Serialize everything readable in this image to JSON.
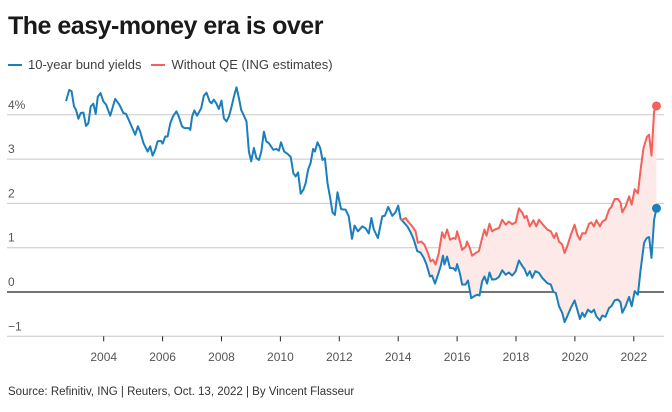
{
  "chart_data": {
    "type": "line",
    "title": "The easy-money era is over",
    "source": "Source: Refinitiv, ING | Reuters, Oct. 13, 2022 | By Vincent Flasseur",
    "xlabel": "",
    "ylabel": "",
    "xlim": [
      2000.75,
      2023.0
    ],
    "ylim": [
      -1,
      4
    ],
    "y_ticks": [
      4,
      3,
      2,
      1,
      0,
      -1
    ],
    "y_tick_labels": [
      "4%",
      "3",
      "2",
      "1",
      "0",
      "−1"
    ],
    "x_ticks": [
      2004,
      2006,
      2008,
      2010,
      2012,
      2014,
      2016,
      2018,
      2020,
      2022
    ],
    "x_tick_labels": [
      "2004",
      "2006",
      "2008",
      "2010",
      "2012",
      "2014",
      "2016",
      "2018",
      "2020",
      "2022"
    ],
    "grid": true,
    "legend_position": "top-left",
    "series": [
      {
        "name": "10-year bund yields",
        "color": "#1a7fba",
        "points": [
          [
            2002.72,
            4.31
          ],
          [
            2002.83,
            4.56
          ],
          [
            2002.91,
            4.53
          ],
          [
            2002.99,
            4.19
          ],
          [
            2003.06,
            4.11
          ],
          [
            2003.14,
            3.91
          ],
          [
            2003.22,
            4.04
          ],
          [
            2003.31,
            4.05
          ],
          [
            2003.4,
            3.75
          ],
          [
            2003.48,
            3.81
          ],
          [
            2003.56,
            4.19
          ],
          [
            2003.65,
            4.25
          ],
          [
            2003.73,
            4.02
          ],
          [
            2003.8,
            4.41
          ],
          [
            2003.89,
            4.49
          ],
          [
            2003.99,
            4.3
          ],
          [
            2004.08,
            4.23
          ],
          [
            2004.22,
            3.98
          ],
          [
            2004.39,
            4.36
          ],
          [
            2004.53,
            4.23
          ],
          [
            2004.67,
            4.04
          ],
          [
            2004.76,
            4.02
          ],
          [
            2004.9,
            3.81
          ],
          [
            2005.07,
            3.55
          ],
          [
            2005.16,
            3.74
          ],
          [
            2005.24,
            3.62
          ],
          [
            2005.35,
            3.36
          ],
          [
            2005.49,
            3.17
          ],
          [
            2005.58,
            3.29
          ],
          [
            2005.66,
            3.08
          ],
          [
            2005.75,
            3.21
          ],
          [
            2005.83,
            3.4
          ],
          [
            2005.94,
            3.41
          ],
          [
            2006.0,
            3.35
          ],
          [
            2006.09,
            3.51
          ],
          [
            2006.17,
            3.51
          ],
          [
            2006.26,
            3.81
          ],
          [
            2006.35,
            3.96
          ],
          [
            2006.47,
            4.08
          ],
          [
            2006.55,
            3.96
          ],
          [
            2006.66,
            3.74
          ],
          [
            2006.74,
            3.7
          ],
          [
            2006.89,
            3.7
          ],
          [
            2006.94,
            3.66
          ],
          [
            2007.0,
            3.96
          ],
          [
            2007.08,
            4.1
          ],
          [
            2007.17,
            3.98
          ],
          [
            2007.31,
            4.15
          ],
          [
            2007.4,
            4.43
          ],
          [
            2007.49,
            4.5
          ],
          [
            2007.6,
            4.3
          ],
          [
            2007.66,
            4.26
          ],
          [
            2007.74,
            4.34
          ],
          [
            2007.83,
            4.25
          ],
          [
            2007.91,
            4.13
          ],
          [
            2008.0,
            4.32
          ],
          [
            2008.08,
            3.92
          ],
          [
            2008.17,
            3.85
          ],
          [
            2008.25,
            3.96
          ],
          [
            2008.33,
            4.15
          ],
          [
            2008.42,
            4.41
          ],
          [
            2008.51,
            4.62
          ],
          [
            2008.59,
            4.38
          ],
          [
            2008.67,
            4.11
          ],
          [
            2008.76,
            3.98
          ],
          [
            2008.85,
            3.85
          ],
          [
            2008.93,
            3.17
          ],
          [
            2009.01,
            2.95
          ],
          [
            2009.1,
            3.25
          ],
          [
            2009.19,
            3.02
          ],
          [
            2009.27,
            2.98
          ],
          [
            2009.35,
            3.17
          ],
          [
            2009.44,
            3.62
          ],
          [
            2009.52,
            3.4
          ],
          [
            2009.61,
            3.36
          ],
          [
            2009.76,
            3.21
          ],
          [
            2009.86,
            3.23
          ],
          [
            2009.95,
            3.19
          ],
          [
            2010.02,
            3.38
          ],
          [
            2010.13,
            3.17
          ],
          [
            2010.24,
            3.12
          ],
          [
            2010.35,
            3.05
          ],
          [
            2010.44,
            2.68
          ],
          [
            2010.52,
            2.61
          ],
          [
            2010.6,
            2.7
          ],
          [
            2010.69,
            2.22
          ],
          [
            2010.78,
            2.31
          ],
          [
            2010.86,
            2.46
          ],
          [
            2010.94,
            2.76
          ],
          [
            2011.03,
            2.92
          ],
          [
            2011.11,
            3.23
          ],
          [
            2011.17,
            3.17
          ],
          [
            2011.26,
            3.38
          ],
          [
            2011.35,
            3.25
          ],
          [
            2011.43,
            2.98
          ],
          [
            2011.51,
            3.02
          ],
          [
            2011.6,
            2.46
          ],
          [
            2011.69,
            2.12
          ],
          [
            2011.77,
            1.8
          ],
          [
            2011.85,
            1.74
          ],
          [
            2011.94,
            2.25
          ],
          [
            2012.06,
            1.87
          ],
          [
            2012.21,
            1.86
          ],
          [
            2012.32,
            1.71
          ],
          [
            2012.43,
            1.2
          ],
          [
            2012.52,
            1.5
          ],
          [
            2012.63,
            1.37
          ],
          [
            2012.78,
            1.48
          ],
          [
            2012.89,
            1.44
          ],
          [
            2013.0,
            1.32
          ],
          [
            2013.09,
            1.67
          ],
          [
            2013.17,
            1.41
          ],
          [
            2013.31,
            1.22
          ],
          [
            2013.46,
            1.71
          ],
          [
            2013.55,
            1.72
          ],
          [
            2013.66,
            1.92
          ],
          [
            2013.8,
            1.72
          ],
          [
            2013.91,
            1.8
          ],
          [
            2014.0,
            1.95
          ],
          [
            2014.08,
            1.65
          ],
          [
            2014.19,
            1.57
          ],
          [
            2014.31,
            1.48
          ],
          [
            2014.42,
            1.35
          ],
          [
            2014.53,
            1.18
          ],
          [
            2014.65,
            0.92
          ],
          [
            2014.76,
            0.89
          ],
          [
            2014.87,
            0.77
          ],
          [
            2014.96,
            0.62
          ],
          [
            2015.08,
            0.35
          ],
          [
            2015.15,
            0.37
          ],
          [
            2015.25,
            0.19
          ],
          [
            2015.35,
            0.39
          ],
          [
            2015.44,
            0.58
          ],
          [
            2015.52,
            0.82
          ],
          [
            2015.57,
            0.62
          ],
          [
            2015.66,
            0.8
          ],
          [
            2015.76,
            0.54
          ],
          [
            2015.87,
            0.54
          ],
          [
            2015.95,
            0.48
          ],
          [
            2016.0,
            0.63
          ],
          [
            2016.1,
            0.41
          ],
          [
            2016.17,
            0.17
          ],
          [
            2016.29,
            0.17
          ],
          [
            2016.37,
            0.26
          ],
          [
            2016.48,
            -0.14
          ],
          [
            2016.57,
            -0.1
          ],
          [
            2016.68,
            -0.06
          ],
          [
            2016.76,
            -0.08
          ],
          [
            2016.85,
            0.24
          ],
          [
            2016.93,
            0.35
          ],
          [
            2017.02,
            0.19
          ],
          [
            2017.1,
            0.44
          ],
          [
            2017.19,
            0.28
          ],
          [
            2017.31,
            0.29
          ],
          [
            2017.42,
            0.34
          ],
          [
            2017.53,
            0.49
          ],
          [
            2017.65,
            0.39
          ],
          [
            2017.76,
            0.44
          ],
          [
            2017.87,
            0.37
          ],
          [
            2017.99,
            0.47
          ],
          [
            2018.1,
            0.71
          ],
          [
            2018.22,
            0.58
          ],
          [
            2018.29,
            0.52
          ],
          [
            2018.38,
            0.37
          ],
          [
            2018.47,
            0.47
          ],
          [
            2018.55,
            0.32
          ],
          [
            2018.66,
            0.47
          ],
          [
            2018.78,
            0.43
          ],
          [
            2018.89,
            0.32
          ],
          [
            2019.06,
            0.2
          ],
          [
            2019.18,
            0.17
          ],
          [
            2019.27,
            0.0
          ],
          [
            2019.35,
            -0.02
          ],
          [
            2019.46,
            -0.32
          ],
          [
            2019.57,
            -0.47
          ],
          [
            2019.65,
            -0.68
          ],
          [
            2019.74,
            -0.55
          ],
          [
            2019.86,
            -0.36
          ],
          [
            2019.99,
            -0.19
          ],
          [
            2020.08,
            -0.4
          ],
          [
            2020.17,
            -0.61
          ],
          [
            2020.25,
            -0.47
          ],
          [
            2020.33,
            -0.56
          ],
          [
            2020.44,
            -0.4
          ],
          [
            2020.56,
            -0.46
          ],
          [
            2020.65,
            -0.4
          ],
          [
            2020.73,
            -0.55
          ],
          [
            2020.85,
            -0.64
          ],
          [
            2020.93,
            -0.53
          ],
          [
            2021.04,
            -0.56
          ],
          [
            2021.16,
            -0.36
          ],
          [
            2021.24,
            -0.32
          ],
          [
            2021.35,
            -0.19
          ],
          [
            2021.46,
            -0.17
          ],
          [
            2021.55,
            -0.23
          ],
          [
            2021.61,
            -0.47
          ],
          [
            2021.72,
            -0.32
          ],
          [
            2021.84,
            -0.11
          ],
          [
            2021.93,
            -0.32
          ],
          [
            2022.03,
            0.02
          ],
          [
            2022.14,
            -0.06
          ],
          [
            2022.23,
            0.5
          ],
          [
            2022.35,
            1.11
          ],
          [
            2022.44,
            1.22
          ],
          [
            2022.52,
            1.24
          ],
          [
            2022.6,
            0.77
          ],
          [
            2022.69,
            1.63
          ],
          [
            2022.77,
            1.89
          ]
        ]
      },
      {
        "name": "Without QE (ING estimates)",
        "color": "#f0625a",
        "points": [
          [
            2014.08,
            1.65
          ],
          [
            2014.14,
            1.63
          ],
          [
            2014.25,
            1.67
          ],
          [
            2014.36,
            1.57
          ],
          [
            2014.48,
            1.48
          ],
          [
            2014.59,
            1.37
          ],
          [
            2014.67,
            1.11
          ],
          [
            2014.78,
            1.14
          ],
          [
            2014.89,
            1.07
          ],
          [
            2015.01,
            0.88
          ],
          [
            2015.1,
            0.69
          ],
          [
            2015.18,
            0.73
          ],
          [
            2015.27,
            0.62
          ],
          [
            2015.38,
            0.88
          ],
          [
            2015.49,
            1.35
          ],
          [
            2015.57,
            1.22
          ],
          [
            2015.66,
            1.41
          ],
          [
            2015.76,
            1.18
          ],
          [
            2015.87,
            1.22
          ],
          [
            2015.95,
            1.2
          ],
          [
            2016.0,
            1.37
          ],
          [
            2016.1,
            1.14
          ],
          [
            2016.17,
            0.95
          ],
          [
            2016.29,
            1.02
          ],
          [
            2016.34,
            1.14
          ],
          [
            2016.43,
            0.99
          ],
          [
            2016.51,
            0.82
          ],
          [
            2016.63,
            0.88
          ],
          [
            2016.74,
            0.92
          ],
          [
            2016.85,
            1.22
          ],
          [
            2016.93,
            1.41
          ],
          [
            2017.0,
            1.27
          ],
          [
            2017.1,
            1.54
          ],
          [
            2017.19,
            1.37
          ],
          [
            2017.31,
            1.42
          ],
          [
            2017.42,
            1.44
          ],
          [
            2017.53,
            1.63
          ],
          [
            2017.65,
            1.52
          ],
          [
            2017.76,
            1.59
          ],
          [
            2017.87,
            1.53
          ],
          [
            2017.99,
            1.57
          ],
          [
            2018.1,
            1.89
          ],
          [
            2018.22,
            1.78
          ],
          [
            2018.29,
            1.67
          ],
          [
            2018.36,
            1.72
          ],
          [
            2018.47,
            1.48
          ],
          [
            2018.59,
            1.62
          ],
          [
            2018.69,
            1.48
          ],
          [
            2018.78,
            1.63
          ],
          [
            2018.89,
            1.54
          ],
          [
            2019.06,
            1.41
          ],
          [
            2019.18,
            1.37
          ],
          [
            2019.29,
            1.22
          ],
          [
            2019.37,
            1.33
          ],
          [
            2019.46,
            1.14
          ],
          [
            2019.57,
            1.07
          ],
          [
            2019.65,
            0.88
          ],
          [
            2019.74,
            1.03
          ],
          [
            2019.86,
            1.29
          ],
          [
            2019.99,
            1.52
          ],
          [
            2020.08,
            1.29
          ],
          [
            2020.17,
            1.18
          ],
          [
            2020.25,
            1.33
          ],
          [
            2020.36,
            1.32
          ],
          [
            2020.48,
            1.54
          ],
          [
            2020.56,
            1.57
          ],
          [
            2020.65,
            1.48
          ],
          [
            2020.73,
            1.62
          ],
          [
            2020.85,
            1.48
          ],
          [
            2020.93,
            1.59
          ],
          [
            2021.04,
            1.63
          ],
          [
            2021.16,
            1.86
          ],
          [
            2021.24,
            1.92
          ],
          [
            2021.35,
            2.1
          ],
          [
            2021.46,
            2.1
          ],
          [
            2021.55,
            2.02
          ],
          [
            2021.61,
            1.8
          ],
          [
            2021.72,
            1.93
          ],
          [
            2021.84,
            2.16
          ],
          [
            2021.93,
            1.97
          ],
          [
            2022.03,
            2.32
          ],
          [
            2022.14,
            2.23
          ],
          [
            2022.23,
            2.76
          ],
          [
            2022.33,
            3.25
          ],
          [
            2022.44,
            3.5
          ],
          [
            2022.52,
            3.55
          ],
          [
            2022.6,
            3.08
          ],
          [
            2022.69,
            4.08
          ],
          [
            2022.77,
            4.2
          ]
        ]
      }
    ],
    "fill_between_color": "#fde9e7"
  }
}
